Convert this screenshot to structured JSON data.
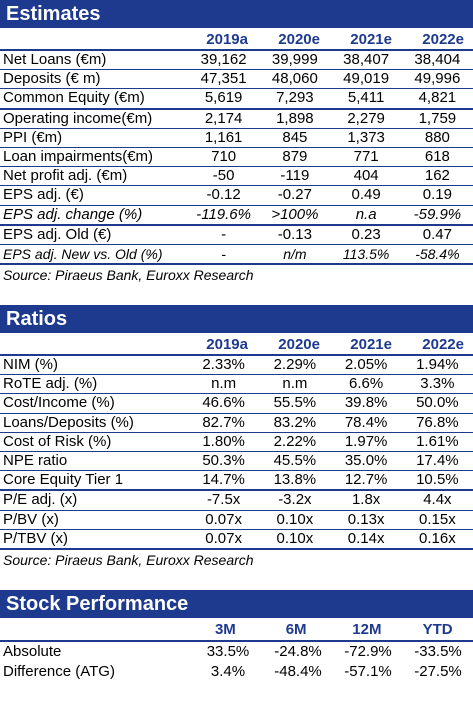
{
  "estimates": {
    "title": "Estimates",
    "columns": [
      "2019a",
      "2020e",
      "2021e",
      "2022e"
    ],
    "rows": [
      {
        "label": "Net Loans (€m)",
        "values": [
          "39,162",
          "39,999",
          "38,407",
          "38,404"
        ]
      },
      {
        "label": "Deposits (€ m)",
        "values": [
          "47,351",
          "48,060",
          "49,019",
          "49,996"
        ]
      },
      {
        "label": "Common Equity (€m)",
        "values": [
          "5,619",
          "7,293",
          "5,411",
          "4,821"
        ]
      },
      {
        "label": "Operating income(€m)",
        "values": [
          "2,174",
          "1,898",
          "2,279",
          "1,759"
        ]
      },
      {
        "label": "PPI (€m)",
        "values": [
          "1,161",
          "845",
          "1,373",
          "880"
        ]
      },
      {
        "label": "Loan impairments(€m)",
        "values": [
          "710",
          "879",
          "771",
          "618"
        ]
      },
      {
        "label": "Net profit adj. (€m)",
        "values": [
          "-50",
          "-119",
          "404",
          "162"
        ]
      },
      {
        "label": "EPS adj. (€)",
        "values": [
          "-0.12",
          "-0.27",
          "0.49",
          "0.19"
        ]
      },
      {
        "label": "EPS adj. change (%)",
        "values": [
          "-119.6%",
          ">100%",
          "n.a",
          "-59.9%"
        ]
      },
      {
        "label": "EPS adj. Old (€)",
        "values": [
          "-",
          "-0.13",
          "0.23",
          "0.47"
        ]
      },
      {
        "label": "EPS adj. New vs. Old (%)",
        "values": [
          "-",
          "n/m",
          "113.5%",
          "-58.4%"
        ]
      }
    ],
    "source": "Source: Piraeus Bank, Euroxx Research"
  },
  "ratios": {
    "title": "Ratios",
    "columns": [
      "2019a",
      "2020e",
      "2021e",
      "2022e"
    ],
    "rows": [
      {
        "label": "NIM (%)",
        "values": [
          "2.33%",
          "2.29%",
          "2.05%",
          "1.94%"
        ]
      },
      {
        "label": "RoTE adj. (%)",
        "values": [
          "n.m",
          "n.m",
          "6.6%",
          "3.3%"
        ]
      },
      {
        "label": "Cost/Income (%)",
        "values": [
          "46.6%",
          "55.5%",
          "39.8%",
          "50.0%"
        ]
      },
      {
        "label": "Loans/Deposits (%)",
        "values": [
          "82.7%",
          "83.2%",
          "78.4%",
          "76.8%"
        ]
      },
      {
        "label": "Cost of Risk (%)",
        "values": [
          "1.80%",
          "2.22%",
          "1.97%",
          "1.61%"
        ]
      },
      {
        "label": "NPE ratio",
        "values": [
          "50.3%",
          "45.5%",
          "35.0%",
          "17.4%"
        ]
      },
      {
        "label": "Core Equity Tier 1",
        "values": [
          "14.7%",
          "13.8%",
          "12.7%",
          "10.5%"
        ]
      },
      {
        "label": "P/E adj. (x)",
        "values": [
          "-7.5x",
          "-3.2x",
          "1.8x",
          "4.4x"
        ]
      },
      {
        "label": "P/BV (x)",
        "values": [
          "0.07x",
          "0.10x",
          "0.13x",
          "0.15x"
        ]
      },
      {
        "label": "P/TBV (x)",
        "values": [
          "0.07x",
          "0.10x",
          "0.14x",
          "0.16x"
        ]
      }
    ],
    "source": "Source: Piraeus Bank, Euroxx Research"
  },
  "performance": {
    "title": "Stock Performance",
    "columns": [
      "3M",
      "6M",
      "12M",
      "YTD"
    ],
    "rows": [
      {
        "label": "Absolute",
        "values": [
          "33.5%",
          "-24.8%",
          "-72.9%",
          "-33.5%"
        ]
      },
      {
        "label": "Difference (ATG)",
        "values": [
          "3.4%",
          "-48.4%",
          "-57.1%",
          "-27.5%"
        ]
      }
    ]
  }
}
